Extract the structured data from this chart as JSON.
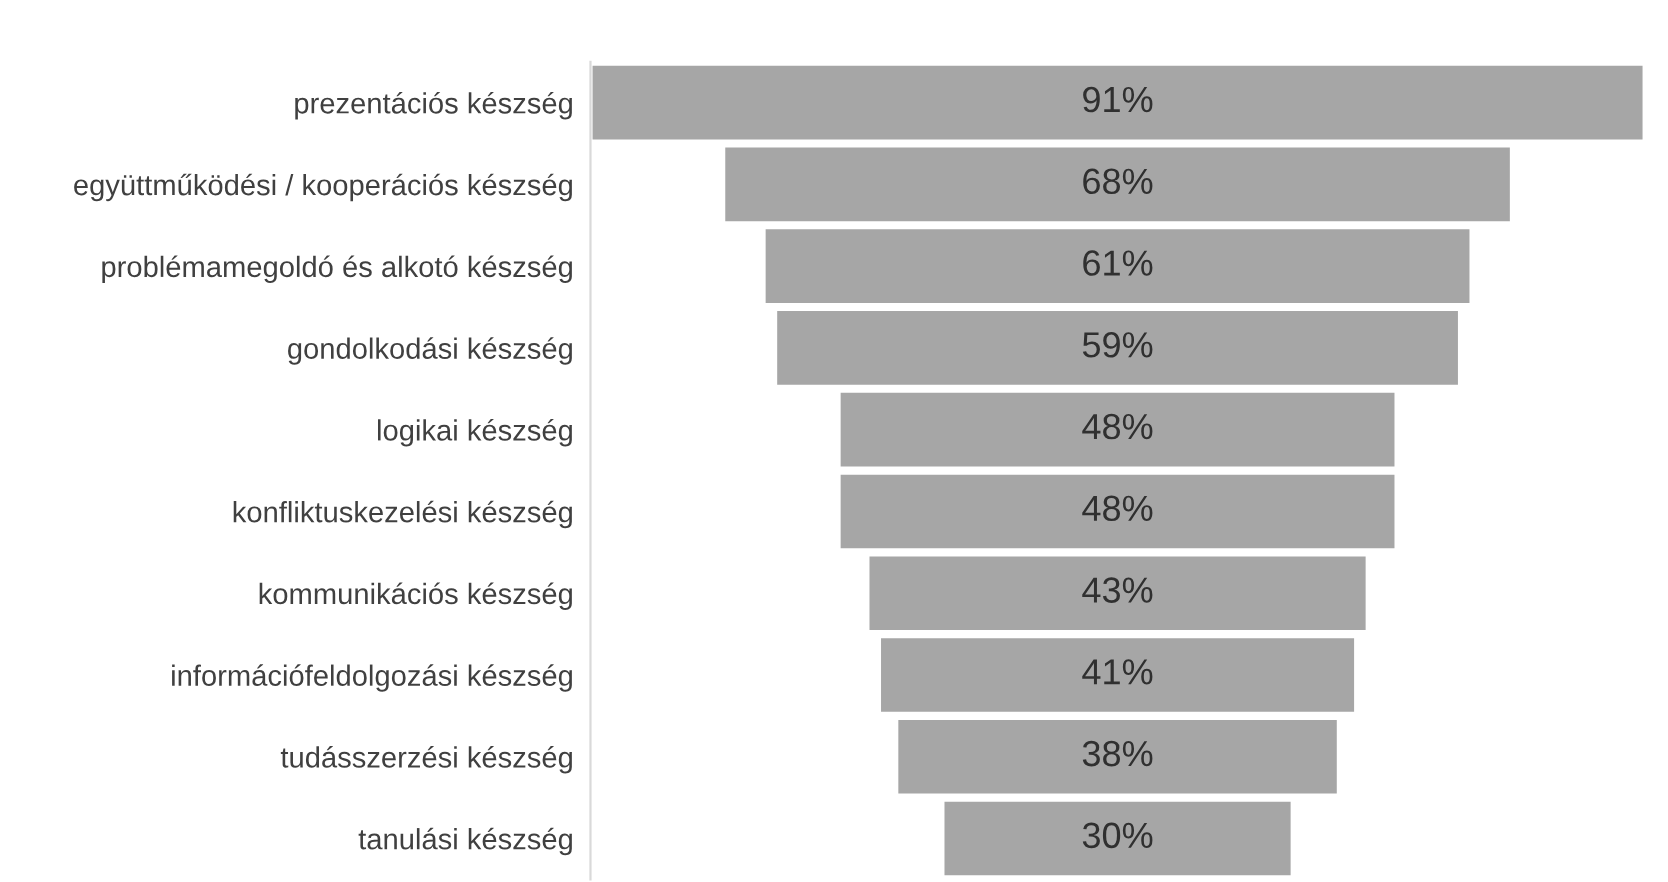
{
  "chart_data": {
    "type": "other",
    "categories": [
      "prezentációs készség",
      "együttműködési / kooperációs készség",
      "problémamegoldó és alkotó készség",
      "gondolkodási készség",
      "logikai készség",
      "konfliktuskezelési készség",
      "kommunikációs készség",
      "információfeldolgozási készség",
      "tudásszerzési készség",
      "tanulási készség"
    ],
    "values": [
      91,
      68,
      61,
      59,
      48,
      48,
      43,
      41,
      38,
      30
    ],
    "value_labels": [
      "91%",
      "68%",
      "61%",
      "59%",
      "48%",
      "48%",
      "43%",
      "41%",
      "38%",
      "30%"
    ],
    "color": "#a6a6a6"
  }
}
